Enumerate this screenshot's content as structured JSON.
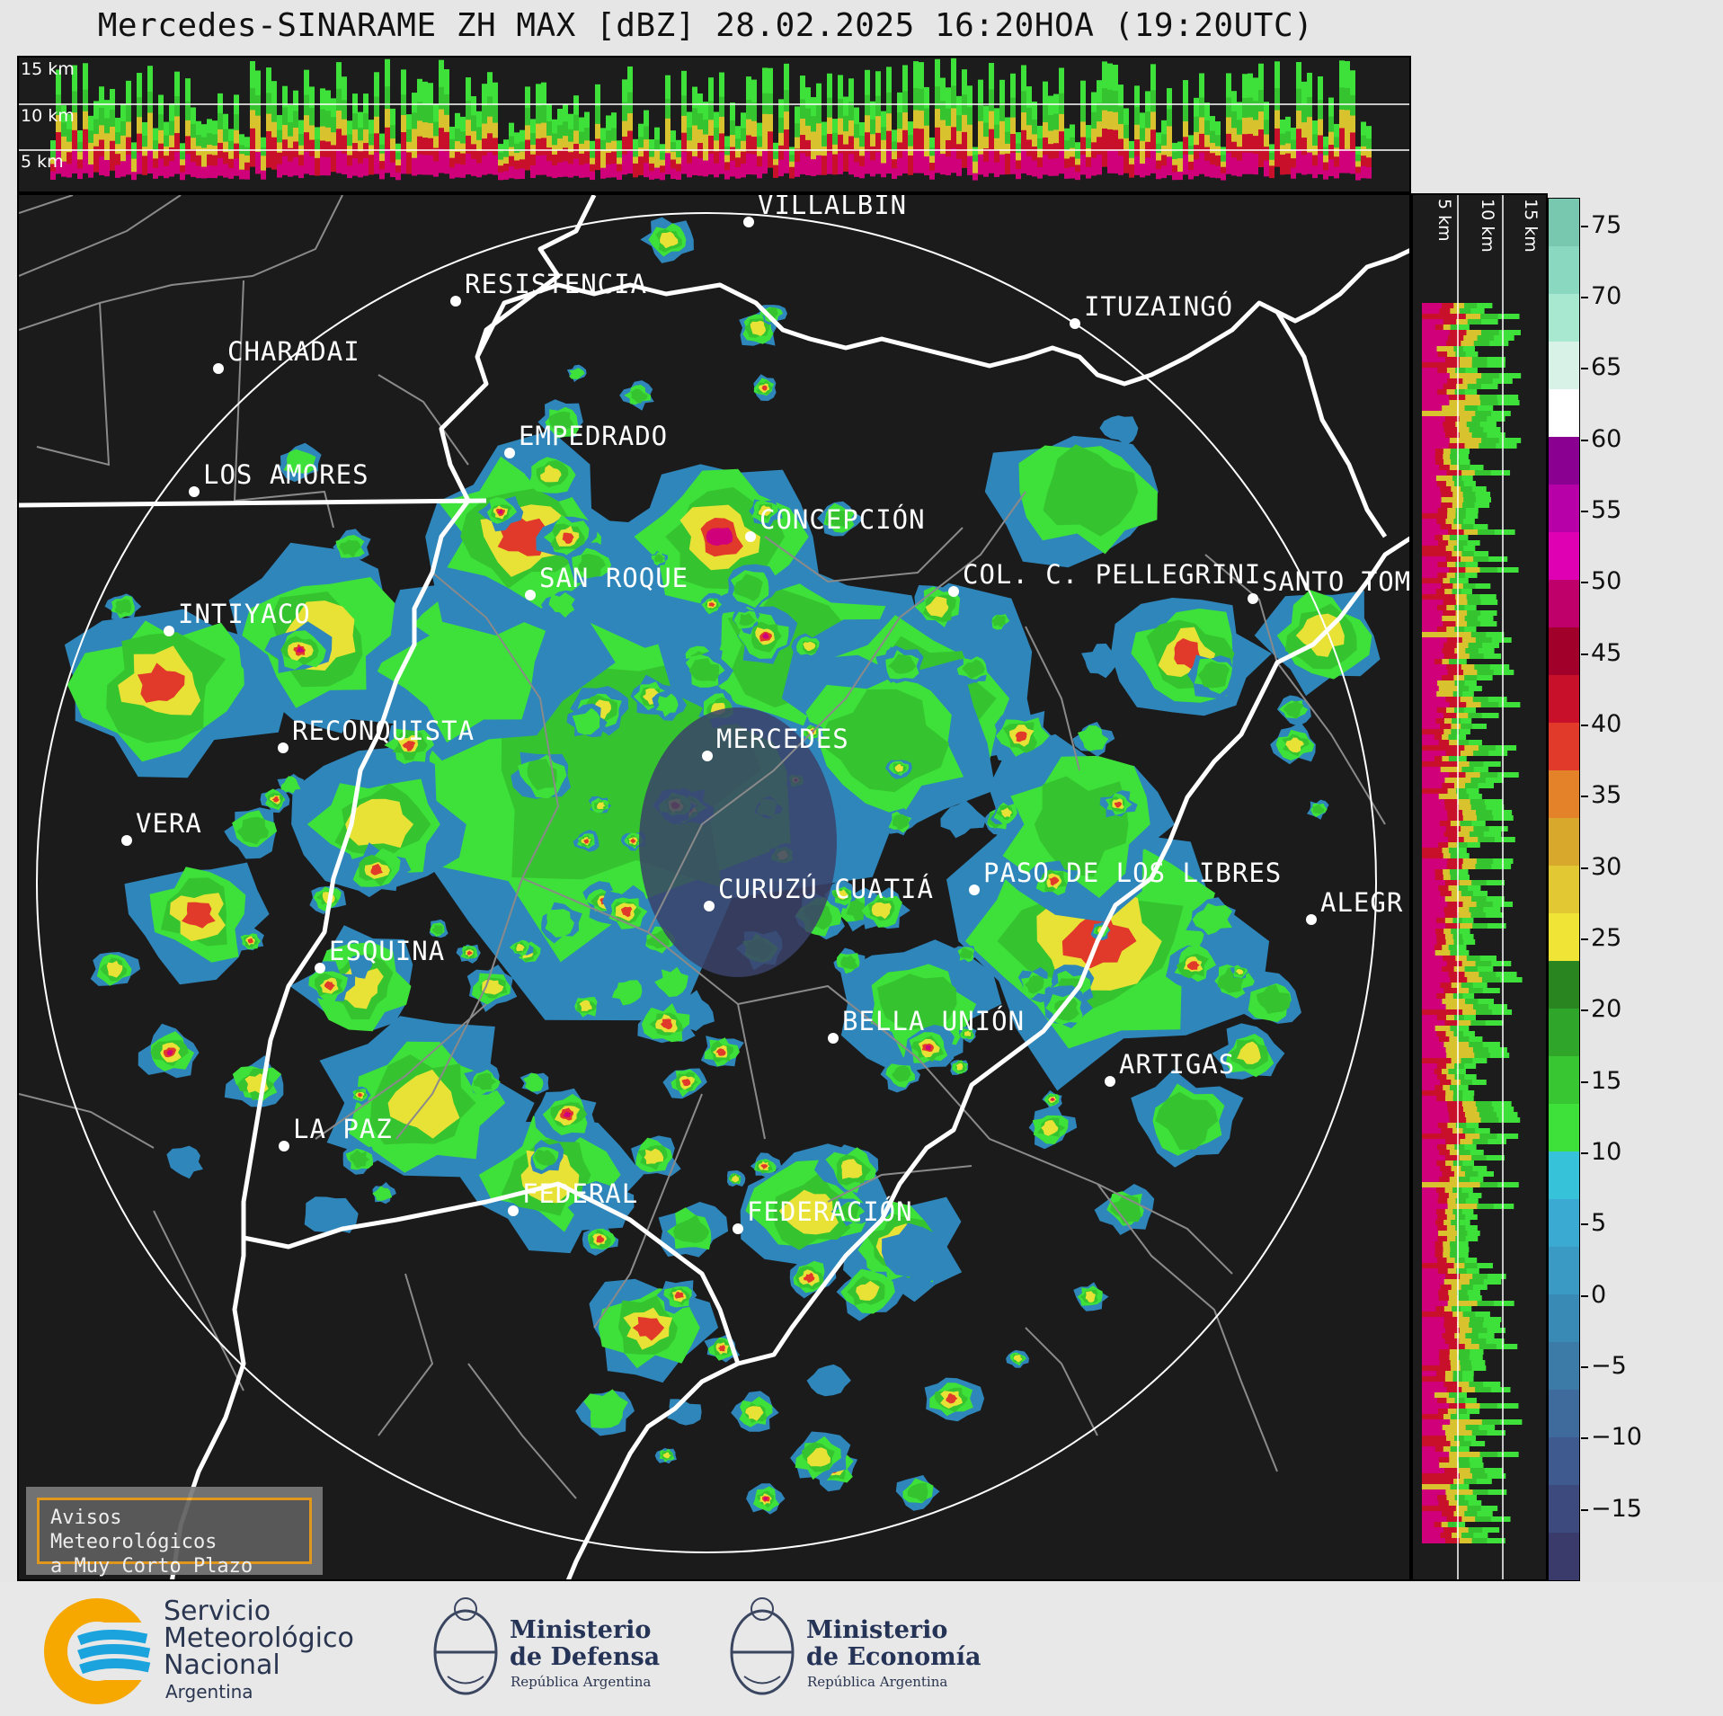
{
  "title": "Mercedes-SINARAME ZH MAX [dBZ] 28.02.2025 16:20HOA (19:20UTC)",
  "top_profile": {
    "km_labels": [
      "15 km",
      "10 km",
      "5 km"
    ]
  },
  "side_profile": {
    "km_labels": [
      "5 km",
      "10 km",
      "15 km"
    ]
  },
  "cities": [
    {
      "name": "VILLALBÍN"
    },
    {
      "name": "RESISTENCIA"
    },
    {
      "name": "CHARADAI"
    },
    {
      "name": "ITUZAINGÓ"
    },
    {
      "name": "EMPEDRADO"
    },
    {
      "name": "LOS AMORES"
    },
    {
      "name": "CONCEPCIÓN"
    },
    {
      "name": "SAN ROQUE"
    },
    {
      "name": "COL. C. PELLEGRINI"
    },
    {
      "name": "SANTO TOM"
    },
    {
      "name": "INTIYACO"
    },
    {
      "name": "RECONQUISTA"
    },
    {
      "name": "MERCEDES"
    },
    {
      "name": "VERA"
    },
    {
      "name": "CURUZÚ CUATIÁ"
    },
    {
      "name": "PASO DE LOS LIBRES"
    },
    {
      "name": "ALEGR"
    },
    {
      "name": "ESQUINA"
    },
    {
      "name": "BELLA UNIÓN"
    },
    {
      "name": "ARTIGAS"
    },
    {
      "name": "LA PAZ"
    },
    {
      "name": "FEDERAL"
    },
    {
      "name": "FEDERACIÓN"
    }
  ],
  "warning_box": {
    "line1": "Avisos Meteorológicos",
    "line2": "a Muy Corto Plazo"
  },
  "colorbar": {
    "unit": "dBZ",
    "ticks": [
      "75",
      "70",
      "65",
      "60",
      "55",
      "50",
      "45",
      "40",
      "35",
      "30",
      "25",
      "20",
      "15",
      "10",
      "5",
      "0",
      "−5",
      "−10",
      "−15"
    ],
    "range": [
      -20,
      77
    ],
    "colors": [
      "#3b3b6b",
      "#3d4a7e",
      "#3f5a8e",
      "#3f6a9c",
      "#3c7aa8",
      "#3a8ab6",
      "#3a9ac4",
      "#3aaad2",
      "#36c2d8",
      "#3ee03a",
      "#38c632",
      "#2fa52a",
      "#28851f",
      "#f0e436",
      "#e2c832",
      "#d7a82c",
      "#e4822a",
      "#e23a2a",
      "#c8102a",
      "#a0002a",
      "#c0006a",
      "#e000b4",
      "#b800a8",
      "#8a0090",
      "#ffffff",
      "#d8f2e8",
      "#a8e8d0",
      "#8ad8c0",
      "#78c8b0"
    ],
    "notes": "blue scale -20..18, green 18..30, yellow/orange 30..43, red 43..50, magenta 50..58, white/cyan 58..77"
  },
  "footer": {
    "smn": {
      "line1": "Servicio",
      "line2": "Meteorológico",
      "line3": "Nacional",
      "line4": "Argentina"
    },
    "defensa": {
      "line1": "Ministerio",
      "line2": "de Defensa",
      "line3": "República Argentina"
    },
    "economia": {
      "line1": "Ministerio",
      "line2": "de Economía",
      "line3": "República Argentina"
    }
  }
}
